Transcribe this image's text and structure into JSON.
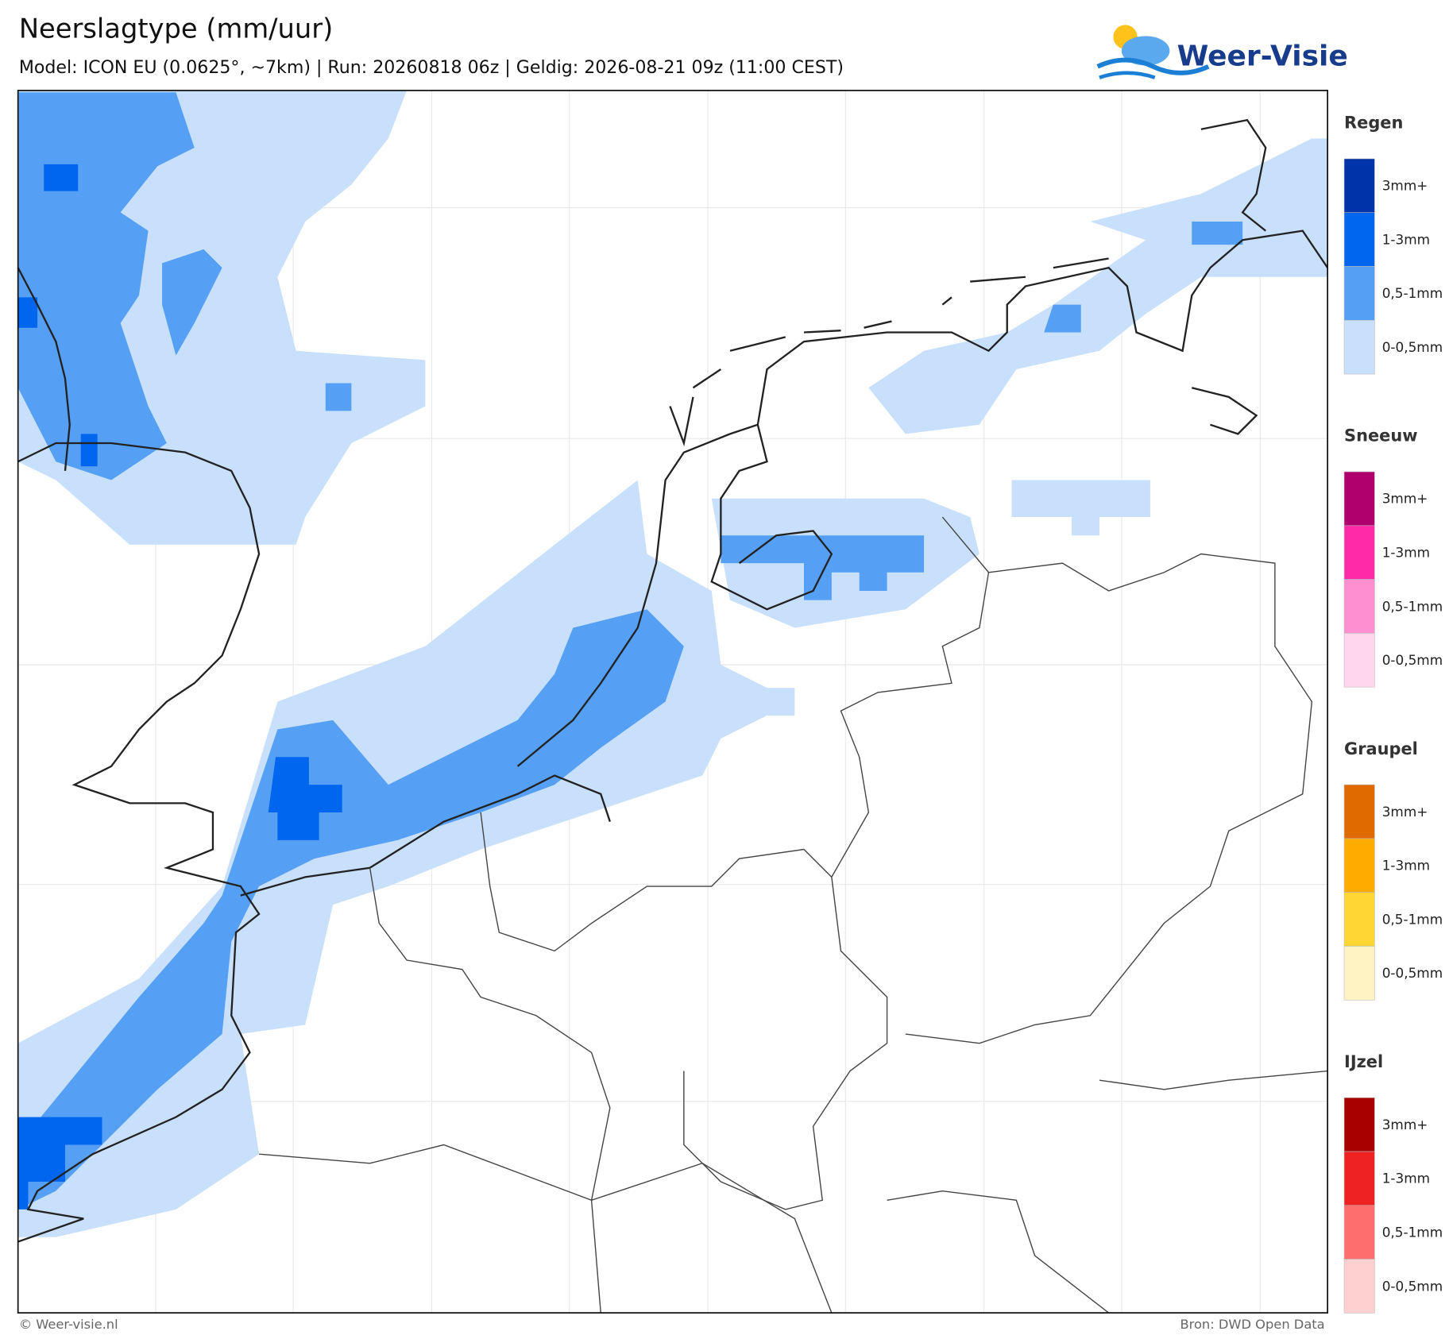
{
  "header": {
    "title": "Neerslagtype (mm/uur)",
    "subtitle": "Model: ICON EU (0.0625°, ~7km)  |  Run: 20260818 06z  |  Geldig: 2026-08-21 09z (11:00 CEST)"
  },
  "logo": {
    "text": "Weer-Visie"
  },
  "legend": {
    "groups": [
      {
        "title": "Regen",
        "items": [
          {
            "label": "3mm+",
            "color": "#0033aa"
          },
          {
            "label": "1-3mm",
            "color": "#0066ee"
          },
          {
            "label": "0,5-1mm",
            "color": "#55a0f5"
          },
          {
            "label": "0-0,5mm",
            "color": "#c8e0fb"
          }
        ]
      },
      {
        "title": "Sneeuw",
        "items": [
          {
            "label": "3mm+",
            "color": "#b0006e"
          },
          {
            "label": "1-3mm",
            "color": "#ff2aa8"
          },
          {
            "label": "0,5-1mm",
            "color": "#ff90cf"
          },
          {
            "label": "0-0,5mm",
            "color": "#ffd6ec"
          }
        ]
      },
      {
        "title": "Graupel",
        "items": [
          {
            "label": "3mm+",
            "color": "#e06a00"
          },
          {
            "label": "1-3mm",
            "color": "#ffab00"
          },
          {
            "label": "0,5-1mm",
            "color": "#ffd633"
          },
          {
            "label": "0-0,5mm",
            "color": "#fff3c4"
          }
        ]
      },
      {
        "title": "IJzel",
        "items": [
          {
            "label": "3mm+",
            "color": "#a80000"
          },
          {
            "label": "1-3mm",
            "color": "#ee2222"
          },
          {
            "label": "0,5-1mm",
            "color": "#ff6e6e"
          },
          {
            "label": "0-0,5mm",
            "color": "#ffd0d0"
          }
        ]
      }
    ]
  },
  "footer": {
    "left": "© Weer-visie.nl",
    "right": "Bron: DWD Open Data"
  }
}
